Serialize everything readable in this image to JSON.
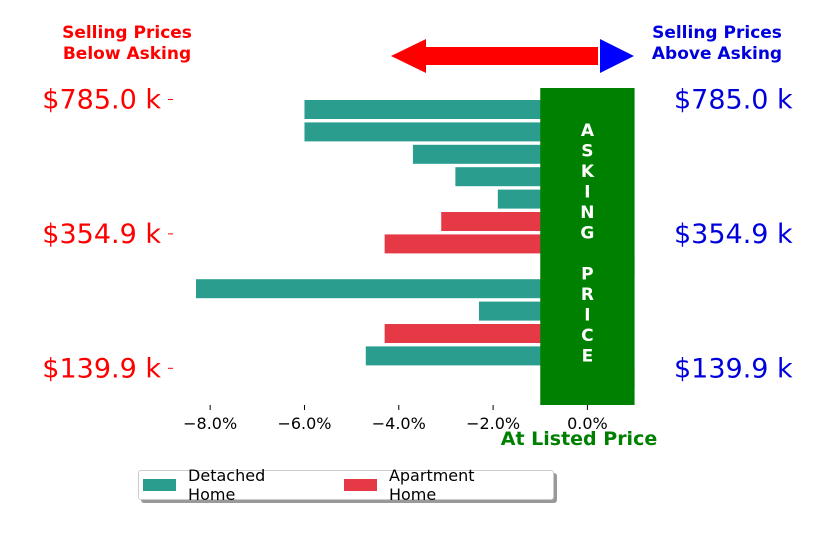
{
  "chart_data": {
    "type": "bar",
    "orientation": "horizontal",
    "title": "",
    "xlabel": "At Listed Price",
    "xlim": [
      -9.0,
      1.2
    ],
    "xticks": [
      -8.0,
      -6.0,
      -4.0,
      -2.0,
      0.0
    ],
    "xtick_labels": [
      "−8.0%",
      "−6.0%",
      "−4.0%",
      "−2.0%",
      "0.0%"
    ],
    "series": [
      {
        "name": "Detached Home",
        "color": "#2a9d8f"
      },
      {
        "name": "Apartment Home",
        "color": "#e63946"
      }
    ],
    "bars": [
      {
        "value": -6.0,
        "series": 0
      },
      {
        "value": -6.0,
        "series": 0
      },
      {
        "value": -3.7,
        "series": 0
      },
      {
        "value": -2.8,
        "series": 0
      },
      {
        "value": -1.9,
        "series": 0
      },
      {
        "value": -3.1,
        "series": 1
      },
      {
        "value": -4.3,
        "series": 1
      },
      {
        "value": 1.0,
        "series": 0
      },
      {
        "value": -8.3,
        "series": 0
      },
      {
        "value": -2.3,
        "series": 0
      },
      {
        "value": -4.3,
        "series": 1
      },
      {
        "value": -4.7,
        "series": 0
      },
      {
        "value": 1.0,
        "series": 1
      }
    ],
    "price_ticks": [
      {
        "label": "$785.0 k",
        "bar_index": 0
      },
      {
        "label": "$354.9 k",
        "bar_index": 6
      },
      {
        "label": "$139.9 k",
        "bar_index": 12
      }
    ],
    "price_tick_color_left": "#ff0000",
    "price_tick_color_right": "#0000dd",
    "left_header": [
      "Selling Prices",
      "Below Asking"
    ],
    "right_header": [
      "Selling Prices",
      "Above Asking"
    ],
    "asking_band": {
      "xrange": [
        -1.0,
        1.0
      ],
      "color": "#008000",
      "letters": [
        "A",
        "S",
        "K",
        "I",
        "N",
        "G",
        "",
        "P",
        "R",
        "I",
        "C",
        "E"
      ]
    },
    "arrow_color_left": "#ff0000",
    "arrow_color_right": "#0000ff",
    "xlabel_color": "#008000",
    "legend_position": "lower-center"
  }
}
